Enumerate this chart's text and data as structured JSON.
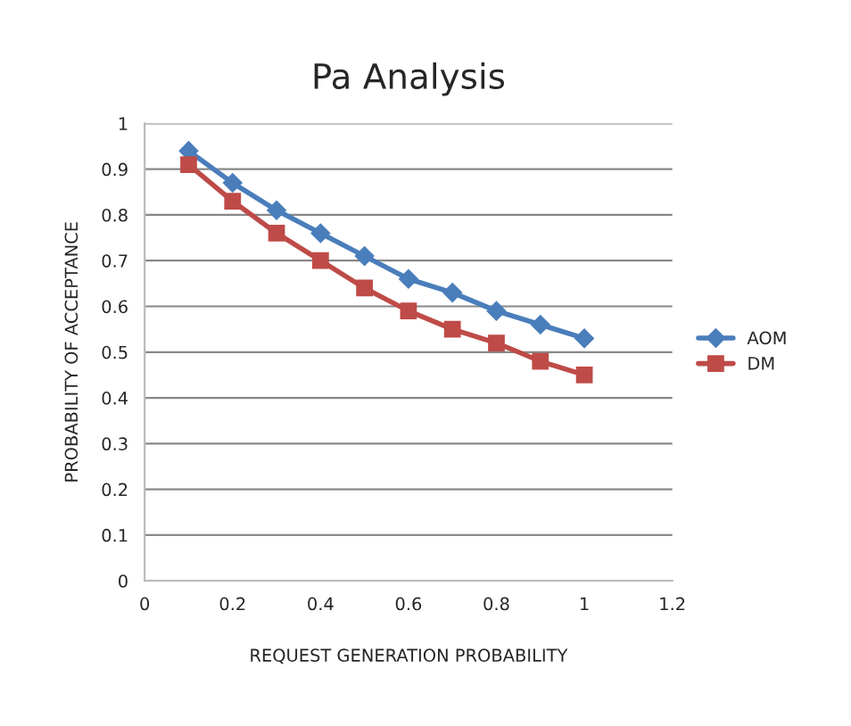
{
  "chart_data": {
    "type": "line",
    "title": "Pa Analysis",
    "xlabel": "REQUEST GENERATION PROBABILITY",
    "ylabel": "PROBABILITY OF ACCEPTANCE",
    "x": [
      0.1,
      0.2,
      0.3,
      0.4,
      0.5,
      0.6,
      0.7,
      0.8,
      0.9,
      1
    ],
    "series": [
      {
        "name": "AOM",
        "color": "#4a7ebb",
        "marker": "diamond",
        "values": [
          0.94,
          0.87,
          0.81,
          0.76,
          0.71,
          0.66,
          0.63,
          0.59,
          0.56,
          0.53
        ]
      },
      {
        "name": "DM",
        "color": "#be4b48",
        "marker": "square",
        "values": [
          0.91,
          0.83,
          0.76,
          0.7,
          0.64,
          0.59,
          0.55,
          0.52,
          0.48,
          0.45
        ]
      }
    ],
    "xlim": [
      0,
      1.2
    ],
    "xticks": [
      0,
      0.2,
      0.4,
      0.6,
      0.8,
      1,
      1.2
    ],
    "ylim": [
      0,
      1
    ],
    "yticks": [
      0,
      0.1,
      0.2,
      0.3,
      0.4,
      0.5,
      0.6,
      0.7,
      0.8,
      0.9,
      1
    ],
    "grid": "y",
    "legend": "right"
  }
}
